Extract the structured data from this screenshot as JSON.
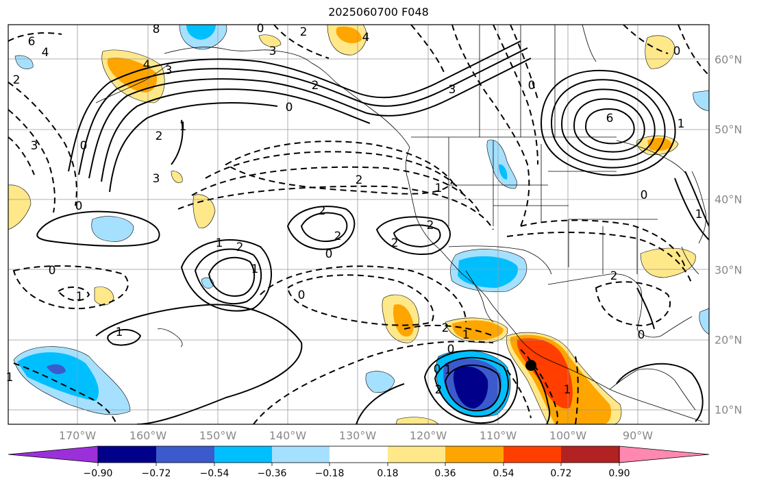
{
  "title": "2025060700 F048",
  "map": {
    "lon_labels": [
      "170°W",
      "160°W",
      "150°W",
      "140°W",
      "130°W",
      "120°W",
      "110°W",
      "100°W",
      "90°W"
    ],
    "lat_labels": [
      "60°N",
      "50°N",
      "40°N",
      "30°N",
      "20°N",
      "10°N"
    ],
    "contour_labels": [
      "6",
      "4",
      "8",
      "0",
      "2",
      "4",
      "3",
      "2",
      "4",
      "3",
      "0",
      "2",
      "3",
      "0",
      "1",
      "2",
      "6",
      "3",
      "2",
      "0",
      "3",
      "1",
      "0",
      "2",
      "2",
      "2",
      "1",
      "1",
      "2",
      "0",
      "2",
      "0",
      "1",
      "2",
      "1",
      "0",
      "0",
      "1",
      "0",
      "1",
      "2",
      "0",
      "1",
      "1",
      "2",
      "0",
      "1",
      "0",
      "1"
    ]
  },
  "colorbar": {
    "ticks": [
      "−0.90",
      "−0.72",
      "−0.54",
      "−0.36",
      "−0.18",
      "0.18",
      "0.36",
      "0.54",
      "0.72",
      "0.90"
    ],
    "colors": [
      "#9b30d9",
      "#00008b",
      "#3b5bcc",
      "#00bfff",
      "#a6e0ff",
      "#ffffff",
      "#ffe88a",
      "#ffa500",
      "#ff3e00",
      "#b22222",
      "#ff88b0"
    ]
  }
}
